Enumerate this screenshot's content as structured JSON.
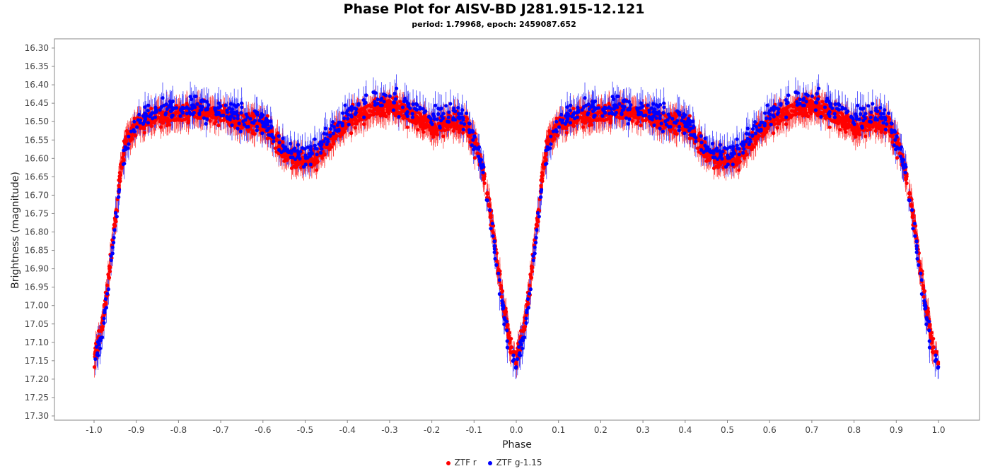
{
  "chart_data": {
    "type": "scatter",
    "title": "Phase Plot for AISV-BD J281.915-12.121",
    "subtitle": "period: 1.79968, epoch: 2459087.652",
    "xlabel": "Phase",
    "ylabel": "Brightness (magnitude)",
    "xlim": [
      -1.07,
      1.1
    ],
    "ylim": [
      17.32,
      16.28
    ],
    "y_inverted": true,
    "xticks": [
      "-1.0",
      "-0.9",
      "-0.8",
      "-0.7",
      "-0.6",
      "-0.5",
      "-0.4",
      "-0.3",
      "-0.2",
      "-0.1",
      "0.0",
      "0.1",
      "0.2",
      "0.3",
      "0.4",
      "0.5",
      "0.6",
      "0.7",
      "0.8",
      "0.9",
      "1.0"
    ],
    "yticks": [
      "16.30",
      "16.35",
      "16.40",
      "16.45",
      "16.50",
      "16.55",
      "16.60",
      "16.65",
      "16.70",
      "16.75",
      "16.80",
      "16.85",
      "16.90",
      "16.95",
      "17.00",
      "17.05",
      "17.10",
      "17.15",
      "17.20",
      "17.25",
      "17.30"
    ],
    "grid": false,
    "legend_position": "bottom",
    "error_bars": true,
    "series": [
      {
        "name": "ZTF r",
        "color": "#ff0000",
        "light_curve": [
          [
            0.0,
            17.15
          ],
          [
            0.015,
            17.08
          ],
          [
            0.03,
            16.97
          ],
          [
            0.045,
            16.82
          ],
          [
            0.06,
            16.66
          ],
          [
            0.075,
            16.55
          ],
          [
            0.1,
            16.51
          ],
          [
            0.15,
            16.49
          ],
          [
            0.2,
            16.48
          ],
          [
            0.25,
            16.47
          ],
          [
            0.3,
            16.48
          ],
          [
            0.35,
            16.5
          ],
          [
            0.4,
            16.51
          ],
          [
            0.43,
            16.55
          ],
          [
            0.46,
            16.6
          ],
          [
            0.5,
            16.61
          ],
          [
            0.53,
            16.6
          ],
          [
            0.56,
            16.55
          ],
          [
            0.6,
            16.5
          ],
          [
            0.65,
            16.47
          ],
          [
            0.7,
            16.46
          ],
          [
            0.75,
            16.48
          ],
          [
            0.8,
            16.52
          ],
          [
            0.85,
            16.5
          ],
          [
            0.88,
            16.51
          ],
          [
            0.91,
            16.58
          ],
          [
            0.925,
            16.65
          ],
          [
            0.94,
            16.76
          ],
          [
            0.955,
            16.88
          ],
          [
            0.97,
            17.0
          ],
          [
            0.985,
            17.1
          ],
          [
            1.0,
            17.15
          ]
        ],
        "scatter_sigma": 0.025,
        "error": 0.03
      },
      {
        "name": "ZTF g-1.15",
        "color": "#0000ff",
        "light_curve": [
          [
            0.0,
            17.17
          ],
          [
            0.015,
            17.1
          ],
          [
            0.03,
            16.99
          ],
          [
            0.045,
            16.84
          ],
          [
            0.06,
            16.68
          ],
          [
            0.075,
            16.57
          ],
          [
            0.1,
            16.5
          ],
          [
            0.15,
            16.47
          ],
          [
            0.2,
            16.47
          ],
          [
            0.25,
            16.46
          ],
          [
            0.3,
            16.47
          ],
          [
            0.35,
            16.49
          ],
          [
            0.4,
            16.5
          ],
          [
            0.43,
            16.54
          ],
          [
            0.46,
            16.58
          ],
          [
            0.5,
            16.59
          ],
          [
            0.53,
            16.58
          ],
          [
            0.56,
            16.53
          ],
          [
            0.6,
            16.48
          ],
          [
            0.65,
            16.45
          ],
          [
            0.7,
            16.44
          ],
          [
            0.75,
            16.46
          ],
          [
            0.8,
            16.49
          ],
          [
            0.85,
            16.48
          ],
          [
            0.88,
            16.5
          ],
          [
            0.91,
            16.58
          ],
          [
            0.925,
            16.66
          ],
          [
            0.94,
            16.78
          ],
          [
            0.955,
            16.9
          ],
          [
            0.97,
            17.02
          ],
          [
            0.985,
            17.12
          ],
          [
            1.0,
            17.17
          ]
        ],
        "scatter_sigma": 0.03,
        "error": 0.035
      }
    ]
  },
  "legend": {
    "items": [
      {
        "label": "ZTF r",
        "color": "#ff0000"
      },
      {
        "label": "ZTF g-1.15",
        "color": "#0000ff"
      }
    ]
  }
}
